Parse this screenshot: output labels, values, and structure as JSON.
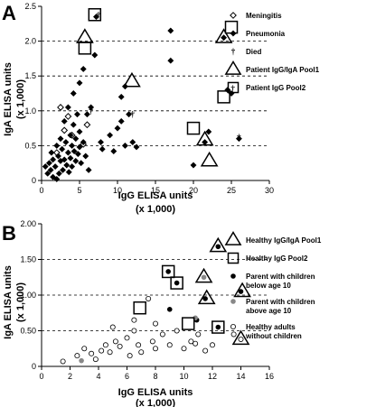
{
  "chart_data": [
    {
      "panel": "A",
      "type": "scatter",
      "xlabel": "IgG ELISA units",
      "xlabel_sub": "(x 1,000)",
      "ylabel": "IgA ELISA units",
      "ylabel_sub": "(x 1,000)",
      "xlim": [
        0,
        30
      ],
      "ylim": [
        0,
        2.5
      ],
      "xticks": [
        0,
        5,
        10,
        15,
        20,
        25,
        30
      ],
      "yticks": [
        0,
        0.5,
        1.0,
        1.5,
        2.0,
        2.5
      ],
      "ytick_labels": [
        "0",
        "0.5",
        "1.0",
        "1.5",
        "2.0",
        "2.5"
      ],
      "gridlines_y": [
        0.5,
        1.0,
        1.5,
        2.0
      ],
      "legend": {
        "placement": "right",
        "entries": [
          {
            "marker": "open-diamond",
            "label": "Meningitis"
          },
          {
            "marker": "filled-diamond",
            "label": "Pneumonia"
          },
          {
            "marker": "dagger",
            "label": "Died"
          },
          {
            "marker": "triangle",
            "label": "Patient IgG/IgA Pool1"
          },
          {
            "marker": "square",
            "label": "Patient IgG Pool2"
          }
        ]
      },
      "series": [
        {
          "name": "Meningitis",
          "marker": "open-diamond",
          "points": [
            [
              2.5,
              1.05
            ],
            [
              3.0,
              0.72
            ],
            [
              3.5,
              0.92
            ],
            [
              4.0,
              0.65
            ],
            [
              5.5,
              0.52
            ],
            [
              6.0,
              0.8
            ],
            [
              2.0,
              0.4
            ]
          ]
        },
        {
          "name": "Pneumonia",
          "marker": "filled-diamond",
          "points": [
            [
              0.5,
              0.2
            ],
            [
              0.8,
              0.1
            ],
            [
              1.0,
              0.25
            ],
            [
              1.2,
              0.15
            ],
            [
              1.3,
              0.4
            ],
            [
              1.5,
              0.3
            ],
            [
              1.5,
              0.05
            ],
            [
              1.8,
              0.2
            ],
            [
              2.0,
              0.5
            ],
            [
              2.0,
              0.02
            ],
            [
              2.2,
              0.35
            ],
            [
              2.3,
              0.1
            ],
            [
              2.5,
              0.6
            ],
            [
              2.5,
              0.28
            ],
            [
              2.7,
              0.45
            ],
            [
              2.8,
              0.15
            ],
            [
              3.0,
              0.85
            ],
            [
              3.0,
              0.3
            ],
            [
              3.2,
              0.55
            ],
            [
              3.3,
              0.22
            ],
            [
              3.5,
              1.05
            ],
            [
              3.5,
              0.4
            ],
            [
              3.6,
              0.12
            ],
            [
              3.8,
              0.65
            ],
            [
              3.8,
              0.32
            ],
            [
              4.0,
              0.5
            ],
            [
              4.0,
              0.2
            ],
            [
              4.2,
              1.25
            ],
            [
              4.2,
              0.8
            ],
            [
              4.3,
              0.42
            ],
            [
              4.5,
              0.6
            ],
            [
              4.5,
              0.28
            ],
            [
              4.7,
              0.95
            ],
            [
              4.8,
              0.38
            ],
            [
              5.0,
              1.4
            ],
            [
              5.0,
              0.7
            ],
            [
              5.0,
              0.48
            ],
            [
              5.2,
              0.25
            ],
            [
              5.5,
              1.6
            ],
            [
              5.5,
              0.55
            ],
            [
              5.8,
              0.35
            ],
            [
              6.0,
              0.95
            ],
            [
              6.2,
              0.15
            ],
            [
              6.5,
              1.05
            ],
            [
              7.0,
              1.8
            ],
            [
              7.2,
              2.35
            ],
            [
              7.8,
              0.55
            ],
            [
              8.0,
              0.45
            ],
            [
              9.0,
              0.65
            ],
            [
              9.5,
              0.42
            ],
            [
              10.0,
              0.75
            ],
            [
              10.5,
              1.2
            ],
            [
              10.5,
              0.85
            ],
            [
              11.0,
              0.5
            ],
            [
              11.0,
              1.35
            ],
            [
              11.5,
              0.95
            ],
            [
              12.0,
              0.55
            ],
            [
              12.5,
              0.48
            ],
            [
              17.0,
              2.15
            ],
            [
              17.0,
              1.72
            ],
            [
              20.0,
              0.22
            ],
            [
              21.5,
              0.55
            ],
            [
              24.0,
              2.05
            ],
            [
              25.0,
              1.25
            ],
            [
              26.0,
              0.6
            ],
            [
              24.5,
              1.3
            ],
            [
              22.0,
              0.7
            ]
          ]
        },
        {
          "name": "Died",
          "marker": "dagger",
          "points": [
            [
              7.5,
              2.38
            ],
            [
              12.0,
              0.95
            ],
            [
              6.5,
              1.0
            ],
            [
              25.2,
              1.32
            ],
            [
              26.0,
              0.62
            ]
          ]
        },
        {
          "name": "Patient IgG/IgA Pool1",
          "marker": "triangle",
          "points": [
            [
              5.7,
              2.05
            ],
            [
              11.9,
              1.42
            ],
            [
              24.0,
              2.05
            ],
            [
              21.5,
              0.58
            ],
            [
              22.1,
              0.28
            ]
          ]
        },
        {
          "name": "Patient IgG Pool2",
          "marker": "square",
          "points": [
            [
              7.0,
              2.38
            ],
            [
              5.7,
              1.9
            ],
            [
              25.0,
              2.2
            ],
            [
              24.0,
              1.2
            ],
            [
              20.0,
              0.75
            ]
          ]
        }
      ]
    },
    {
      "panel": "B",
      "type": "scatter",
      "xlabel": "IgG ELISA units",
      "xlabel_sub": "(x 1,000)",
      "ylabel": "IgA ELISA units",
      "ylabel_sub": "(x 1,000)",
      "xlim": [
        0,
        16
      ],
      "ylim": [
        0,
        2.0
      ],
      "xticks": [
        0,
        2,
        4,
        6,
        8,
        10,
        12,
        14,
        16
      ],
      "yticks": [
        0,
        0.5,
        1.0,
        1.5,
        2.0
      ],
      "ytick_labels": [
        "0",
        "0.50",
        "1.00",
        "1.50",
        "2.00"
      ],
      "gridlines_y": [
        0.5,
        1.0,
        1.5
      ],
      "legend": {
        "placement": "right",
        "entries": [
          {
            "marker": "triangle",
            "label": "Healthy IgG/IgA Pool1"
          },
          {
            "marker": "square",
            "label": "Healthy IgG Pool2"
          },
          {
            "marker": "filled-circle",
            "label": "Parent with children",
            "label2": "below age 10"
          },
          {
            "marker": "gray-circle",
            "label": "Parent with children",
            "label2": "above age 10"
          },
          {
            "marker": "open-circle",
            "label": "Healthy adults",
            "label2": "without children"
          }
        ]
      },
      "series": [
        {
          "name": "Parent with children below age 10",
          "marker": "filled-circle",
          "points": [
            [
              8.9,
              1.33
            ],
            [
              9.5,
              1.17
            ],
            [
              11.5,
              0.95
            ],
            [
              12.4,
              0.55
            ],
            [
              12.4,
              1.68
            ],
            [
              14.0,
              1.05
            ],
            [
              9.0,
              0.8
            ],
            [
              10.9,
              0.65
            ]
          ]
        },
        {
          "name": "Parent with children above age 10",
          "marker": "gray-circle",
          "points": [
            [
              2.8,
              0.08
            ],
            [
              11.4,
              1.25
            ],
            [
              10.8,
              0.68
            ]
          ]
        },
        {
          "name": "Healthy adults without children",
          "marker": "open-circle",
          "points": [
            [
              1.5,
              0.07
            ],
            [
              2.5,
              0.15
            ],
            [
              3.0,
              0.25
            ],
            [
              3.5,
              0.18
            ],
            [
              3.8,
              0.1
            ],
            [
              4.2,
              0.22
            ],
            [
              4.5,
              0.3
            ],
            [
              4.8,
              0.2
            ],
            [
              5.0,
              0.55
            ],
            [
              5.2,
              0.35
            ],
            [
              5.5,
              0.28
            ],
            [
              6.0,
              0.4
            ],
            [
              6.2,
              0.15
            ],
            [
              6.5,
              0.5
            ],
            [
              6.8,
              0.3
            ],
            [
              7.0,
              0.2
            ],
            [
              7.5,
              0.95
            ],
            [
              7.8,
              0.35
            ],
            [
              8.0,
              0.25
            ],
            [
              8.5,
              0.45
            ],
            [
              9.0,
              0.3
            ],
            [
              9.5,
              0.5
            ],
            [
              10.0,
              0.25
            ],
            [
              10.5,
              0.35
            ],
            [
              10.8,
              0.32
            ],
            [
              11.0,
              0.45
            ],
            [
              11.5,
              0.22
            ],
            [
              12.0,
              0.3
            ],
            [
              13.5,
              0.45
            ],
            [
              14.0,
              0.38
            ],
            [
              8.0,
              0.6
            ],
            [
              6.5,
              0.65
            ]
          ]
        },
        {
          "name": "Healthy IgG/IgA Pool1",
          "marker": "triangle",
          "points": [
            [
              12.4,
              1.68
            ],
            [
              11.4,
              1.25
            ],
            [
              11.6,
              0.95
            ],
            [
              14.1,
              1.05
            ],
            [
              14.0,
              0.38
            ]
          ]
        },
        {
          "name": "Healthy IgG Pool2",
          "marker": "square",
          "points": [
            [
              8.9,
              1.33
            ],
            [
              9.5,
              1.17
            ],
            [
              6.9,
              0.82
            ],
            [
              10.3,
              0.6
            ],
            [
              12.4,
              0.55
            ]
          ]
        }
      ]
    }
  ]
}
